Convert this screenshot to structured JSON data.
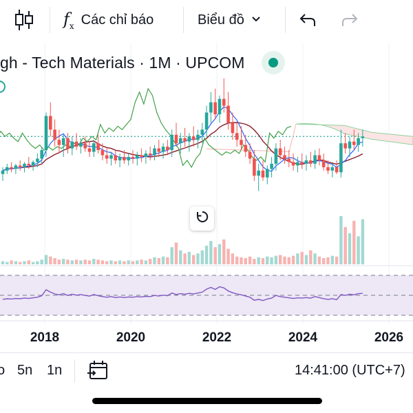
{
  "toolbar": {
    "chart_type_icon": "candles-icon",
    "indicators_label": "Các chỉ báo",
    "chart_menu_label": "Biểu đồ",
    "undo_icon": "undo-icon",
    "redo_icon": "redo-icon"
  },
  "symbol": {
    "title": "gh - Tech Materials · 1M · UPCOM",
    "status": "market-open"
  },
  "colors": {
    "up": "#26a69a",
    "down": "#ef5350",
    "up_volume": "#a3d9d2",
    "down_volume": "#f7b3b1",
    "kijun": "#8b1a2b",
    "tenkan": "#2962ff",
    "lagging": "#43a047",
    "rsi_line": "#7e57c2",
    "rsi_band": "#ede7f6"
  },
  "chart_data": {
    "type": "candlestick",
    "x_axis_labels": [
      "2018",
      "2020",
      "2022",
      "2024",
      "2026"
    ],
    "y_range": [
      0,
      100
    ],
    "last_price_level": 62,
    "rsi_levels": [
      70,
      50,
      30
    ],
    "candles": [
      {
        "o": 40,
        "h": 44,
        "l": 36,
        "c": 42
      },
      {
        "o": 42,
        "h": 46,
        "l": 40,
        "c": 44
      },
      {
        "o": 44,
        "h": 47,
        "l": 41,
        "c": 43
      },
      {
        "o": 43,
        "h": 46,
        "l": 40,
        "c": 45
      },
      {
        "o": 45,
        "h": 48,
        "l": 42,
        "c": 44
      },
      {
        "o": 44,
        "h": 47,
        "l": 41,
        "c": 46
      },
      {
        "o": 46,
        "h": 50,
        "l": 43,
        "c": 45
      },
      {
        "o": 45,
        "h": 48,
        "l": 42,
        "c": 47
      },
      {
        "o": 47,
        "h": 52,
        "l": 44,
        "c": 49
      },
      {
        "o": 49,
        "h": 56,
        "l": 46,
        "c": 54
      },
      {
        "o": 54,
        "h": 76,
        "l": 50,
        "c": 74
      },
      {
        "o": 74,
        "h": 82,
        "l": 62,
        "c": 66
      },
      {
        "o": 66,
        "h": 72,
        "l": 56,
        "c": 60
      },
      {
        "o": 60,
        "h": 66,
        "l": 52,
        "c": 57
      },
      {
        "o": 57,
        "h": 63,
        "l": 50,
        "c": 61
      },
      {
        "o": 61,
        "h": 64,
        "l": 52,
        "c": 55
      },
      {
        "o": 55,
        "h": 62,
        "l": 51,
        "c": 59
      },
      {
        "o": 59,
        "h": 64,
        "l": 54,
        "c": 56
      },
      {
        "o": 56,
        "h": 61,
        "l": 52,
        "c": 58
      },
      {
        "o": 58,
        "h": 62,
        "l": 53,
        "c": 55
      },
      {
        "o": 55,
        "h": 59,
        "l": 50,
        "c": 53
      },
      {
        "o": 53,
        "h": 60,
        "l": 50,
        "c": 58
      },
      {
        "o": 58,
        "h": 63,
        "l": 52,
        "c": 54
      },
      {
        "o": 54,
        "h": 58,
        "l": 48,
        "c": 51
      },
      {
        "o": 51,
        "h": 55,
        "l": 46,
        "c": 49
      },
      {
        "o": 49,
        "h": 53,
        "l": 45,
        "c": 51
      },
      {
        "o": 51,
        "h": 54,
        "l": 46,
        "c": 48
      },
      {
        "o": 48,
        "h": 52,
        "l": 44,
        "c": 50
      },
      {
        "o": 50,
        "h": 54,
        "l": 46,
        "c": 48
      },
      {
        "o": 48,
        "h": 52,
        "l": 45,
        "c": 50
      },
      {
        "o": 50,
        "h": 54,
        "l": 46,
        "c": 49
      },
      {
        "o": 49,
        "h": 53,
        "l": 45,
        "c": 51
      },
      {
        "o": 51,
        "h": 55,
        "l": 47,
        "c": 50
      },
      {
        "o": 50,
        "h": 54,
        "l": 46,
        "c": 52
      },
      {
        "o": 52,
        "h": 56,
        "l": 48,
        "c": 51
      },
      {
        "o": 51,
        "h": 57,
        "l": 48,
        "c": 55
      },
      {
        "o": 55,
        "h": 60,
        "l": 50,
        "c": 53
      },
      {
        "o": 53,
        "h": 58,
        "l": 49,
        "c": 56
      },
      {
        "o": 56,
        "h": 60,
        "l": 51,
        "c": 54
      },
      {
        "o": 54,
        "h": 66,
        "l": 50,
        "c": 63
      },
      {
        "o": 63,
        "h": 70,
        "l": 56,
        "c": 58
      },
      {
        "o": 58,
        "h": 64,
        "l": 52,
        "c": 61
      },
      {
        "o": 61,
        "h": 67,
        "l": 56,
        "c": 59
      },
      {
        "o": 59,
        "h": 64,
        "l": 53,
        "c": 62
      },
      {
        "o": 62,
        "h": 68,
        "l": 56,
        "c": 60
      },
      {
        "o": 60,
        "h": 66,
        "l": 55,
        "c": 63
      },
      {
        "o": 63,
        "h": 70,
        "l": 58,
        "c": 66
      },
      {
        "o": 66,
        "h": 80,
        "l": 62,
        "c": 76
      },
      {
        "o": 76,
        "h": 88,
        "l": 70,
        "c": 82
      },
      {
        "o": 82,
        "h": 90,
        "l": 72,
        "c": 75
      },
      {
        "o": 75,
        "h": 86,
        "l": 70,
        "c": 84
      },
      {
        "o": 84,
        "h": 96,
        "l": 76,
        "c": 80
      },
      {
        "o": 80,
        "h": 88,
        "l": 66,
        "c": 70
      },
      {
        "o": 70,
        "h": 76,
        "l": 60,
        "c": 64
      },
      {
        "o": 64,
        "h": 70,
        "l": 56,
        "c": 60
      },
      {
        "o": 60,
        "h": 68,
        "l": 54,
        "c": 57
      },
      {
        "o": 57,
        "h": 63,
        "l": 50,
        "c": 53
      },
      {
        "o": 53,
        "h": 58,
        "l": 46,
        "c": 49
      },
      {
        "o": 49,
        "h": 54,
        "l": 36,
        "c": 39
      },
      {
        "o": 39,
        "h": 46,
        "l": 30,
        "c": 42
      },
      {
        "o": 42,
        "h": 48,
        "l": 36,
        "c": 38
      },
      {
        "o": 38,
        "h": 45,
        "l": 34,
        "c": 43
      },
      {
        "o": 43,
        "h": 50,
        "l": 38,
        "c": 46
      },
      {
        "o": 46,
        "h": 58,
        "l": 42,
        "c": 55
      },
      {
        "o": 55,
        "h": 60,
        "l": 48,
        "c": 51
      },
      {
        "o": 51,
        "h": 56,
        "l": 46,
        "c": 49
      },
      {
        "o": 49,
        "h": 54,
        "l": 44,
        "c": 47
      },
      {
        "o": 47,
        "h": 52,
        "l": 42,
        "c": 45
      },
      {
        "o": 45,
        "h": 50,
        "l": 41,
        "c": 47
      },
      {
        "o": 47,
        "h": 52,
        "l": 43,
        "c": 46
      },
      {
        "o": 46,
        "h": 51,
        "l": 42,
        "c": 48
      },
      {
        "o": 48,
        "h": 53,
        "l": 44,
        "c": 46
      },
      {
        "o": 46,
        "h": 54,
        "l": 43,
        "c": 51
      },
      {
        "o": 51,
        "h": 55,
        "l": 45,
        "c": 48
      },
      {
        "o": 48,
        "h": 52,
        "l": 42,
        "c": 44
      },
      {
        "o": 44,
        "h": 48,
        "l": 40,
        "c": 42
      },
      {
        "o": 42,
        "h": 46,
        "l": 38,
        "c": 44
      },
      {
        "o": 44,
        "h": 48,
        "l": 40,
        "c": 41
      },
      {
        "o": 41,
        "h": 66,
        "l": 38,
        "c": 58
      },
      {
        "o": 58,
        "h": 64,
        "l": 52,
        "c": 55
      },
      {
        "o": 55,
        "h": 62,
        "l": 50,
        "c": 59
      },
      {
        "o": 59,
        "h": 66,
        "l": 54,
        "c": 57
      },
      {
        "o": 57,
        "h": 64,
        "l": 53,
        "c": 61
      },
      {
        "o": 61,
        "h": 66,
        "l": 56,
        "c": 62
      }
    ],
    "volumes": [
      4,
      3,
      5,
      4,
      3,
      4,
      5,
      3,
      4,
      6,
      12,
      10,
      8,
      6,
      7,
      6,
      5,
      6,
      5,
      6,
      5,
      7,
      6,
      5,
      4,
      5,
      4,
      5,
      4,
      5,
      4,
      5,
      6,
      5,
      7,
      9,
      8,
      10,
      9,
      22,
      28,
      18,
      14,
      16,
      12,
      14,
      18,
      24,
      30,
      22,
      26,
      32,
      20,
      14,
      10,
      9,
      8,
      10,
      7,
      9,
      8,
      10,
      9,
      11,
      12,
      10,
      9,
      11,
      14,
      16,
      12,
      18,
      14,
      10,
      8,
      9,
      11,
      10,
      62,
      48,
      40,
      56,
      36,
      58
    ]
  },
  "bottom_bar": {
    "range_partial": "o",
    "range_5y": "5n",
    "range_1y": "1n",
    "goto_date_icon": "calendar-goto-icon",
    "clock": "14:41:00 (UTC+7)"
  }
}
